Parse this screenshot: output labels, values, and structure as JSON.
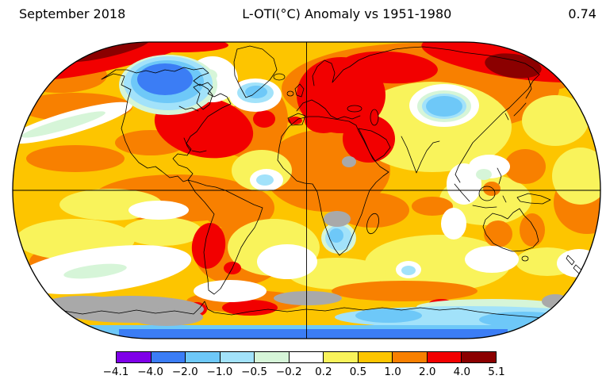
{
  "header": {
    "date_label": "September 2018",
    "title": "L-OTI(°C) Anomaly vs 1951-1980",
    "global_mean": "0.74"
  },
  "colorbar": {
    "tick_labels": [
      "−4.1",
      "−4.0",
      "−2.0",
      "−1.0",
      "−0.5",
      "−0.2",
      "0.2",
      "0.5",
      "1.0",
      "2.0",
      "4.0",
      "5.1"
    ],
    "segment_colors": [
      "#7F00E8",
      "#3B7DF5",
      "#6EC8F8",
      "#A2E2FA",
      "#D6F5D8",
      "#FFFFFF",
      "#F9F35B",
      "#FDC500",
      "#F88000",
      "#F20000",
      "#8B0000"
    ],
    "nodata_color": "#A9A9A9",
    "border_color": "#000000"
  },
  "chart_data": {
    "type": "heatmap",
    "title": "L-OTI(°C) Anomaly vs 1951-1980",
    "period": "September 2018",
    "baseline": "1951-1980",
    "units": "°C",
    "global_mean_anomaly_c": 0.74,
    "projection": "Robinson",
    "scale_bin_edges": [
      -4.1,
      -4.0,
      -2.0,
      -1.0,
      -0.5,
      -0.2,
      0.2,
      0.5,
      1.0,
      2.0,
      4.0,
      5.1
    ],
    "scale_colors": [
      "#7F00E8",
      "#3B7DF5",
      "#6EC8F8",
      "#A2E2FA",
      "#D6F5D8",
      "#FFFFFF",
      "#F9F35B",
      "#FDC500",
      "#F88000",
      "#F20000",
      "#8B0000"
    ],
    "legend_position": "bottom",
    "notable_regions": [
      {
        "region": "Arctic near Beaufort Sea (top left)",
        "anomaly_c": "> 4"
      },
      {
        "region": "East Siberian Arctic (top right)",
        "anomaly_c": "> 4"
      },
      {
        "region": "Eastern North America / Great Lakes",
        "anomaly_c": "2 to 4"
      },
      {
        "region": "Eastern Europe / Western Russia / Middle East",
        "anomaly_c": "2 to 4"
      },
      {
        "region": "Argentina",
        "anomaly_c": "2 to 4"
      },
      {
        "region": "Northwest Canada",
        "anomaly_c": "-4 to -2"
      },
      {
        "region": "Central Siberia",
        "anomaly_c": "-2 to -1"
      },
      {
        "region": "North Atlantic south of Greenland",
        "anomaly_c": "-2 to -1"
      },
      {
        "region": "Antarctic coastal ocean",
        "anomaly_c": "-4 to -2"
      },
      {
        "region": "Southern Africa and parts of Antarctica",
        "anomaly_c": "no data (gray)"
      }
    ]
  }
}
